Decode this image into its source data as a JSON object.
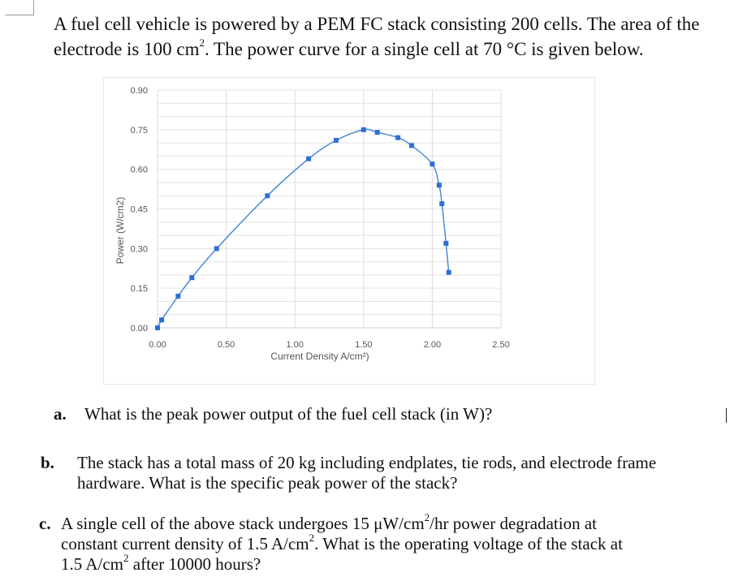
{
  "intro": {
    "line1": "A fuel cell vehicle is powered by a PEM FC stack consisting 200 cells. The area of the",
    "line2_a": "electrode is 100 cm",
    "line2_sup": "2",
    "line2_b": ".  The power curve for a single cell at 70 °C is given below."
  },
  "chart_data": {
    "type": "line",
    "title": "",
    "xlabel": "Current Density A/cm²)",
    "ylabel": "Power (W/cm2)",
    "xlim": [
      0,
      2.5
    ],
    "ylim": [
      0,
      0.9
    ],
    "x_ticks": [
      "0.00",
      "0.50",
      "1.00",
      "1.50",
      "2.00",
      "2.50"
    ],
    "y_ticks": [
      "0.00",
      "0.15",
      "0.30",
      "0.45",
      "0.60",
      "0.75",
      "0.90"
    ],
    "grid": true,
    "legend": null,
    "series": [
      {
        "name": "Power",
        "color": "#2f6fd6",
        "marker": "square",
        "x": [
          0.0,
          0.03,
          0.15,
          0.25,
          0.43,
          0.8,
          1.1,
          1.3,
          1.5,
          1.6,
          1.75,
          1.85,
          2.0,
          2.05,
          2.07,
          2.1,
          2.12
        ],
        "y": [
          0.0,
          0.03,
          0.12,
          0.19,
          0.3,
          0.5,
          0.64,
          0.71,
          0.75,
          0.74,
          0.72,
          0.69,
          0.62,
          0.54,
          0.47,
          0.32,
          0.21
        ]
      }
    ]
  },
  "questions": [
    {
      "label": "a.",
      "text": "What is the peak power output of the fuel cell stack (in W)?"
    },
    {
      "label": "b.",
      "line1": "The stack has a total mass of 20 kg including endplates, tie rods, and electrode frame",
      "line2": "hardware.  What is the specific peak power of the stack?"
    },
    {
      "label": "c.",
      "line1_a": "A single cell of the above stack undergoes 15 μW/cm",
      "line1_sup": "2",
      "line1_b": "/hr power degradation at",
      "line2_a": "constant current density of 1.5 A/cm",
      "line2_sup": "2",
      "line2_b": ".  What is the operating voltage of the stack at",
      "line3_a": "1.5 A/cm",
      "line3_sup": "2",
      "line3_b": " after 10000 hours?"
    }
  ]
}
